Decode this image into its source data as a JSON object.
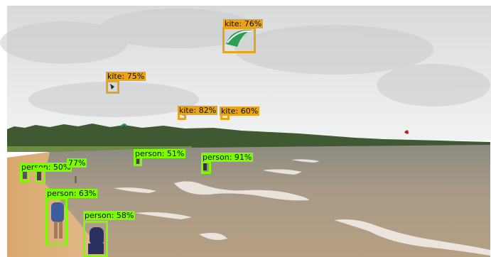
{
  "colors": {
    "kite": "#e8a317",
    "person": "#7cfc00"
  },
  "detections": {
    "kite_76": {
      "label": "kite: 76%"
    },
    "kite_75": {
      "label": "kite: 75%"
    },
    "kite_82": {
      "label": "kite: 82%"
    },
    "kite_60": {
      "label": "kite: 60%"
    },
    "person_51": {
      "label": "person: 51%"
    },
    "person_91": {
      "label": "person: 91%"
    },
    "person_50": {
      "label": "person: 50%"
    },
    "person_77": {
      "label": "77%"
    },
    "person_63": {
      "label": "person: 63%"
    },
    "person_58": {
      "label": "person: 58%"
    }
  }
}
